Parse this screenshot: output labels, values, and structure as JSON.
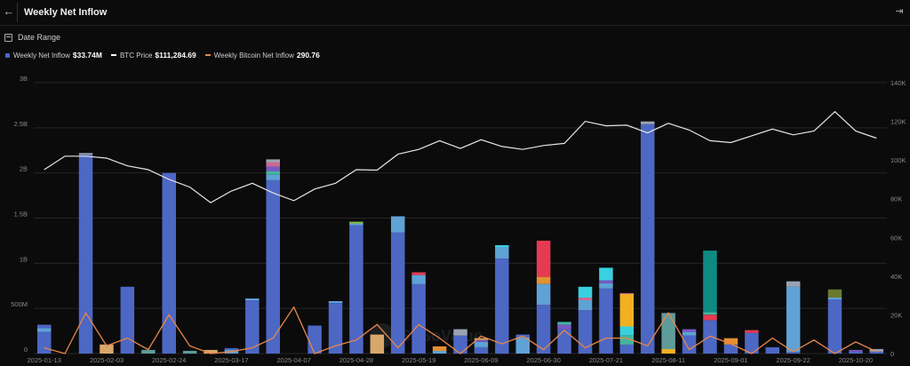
{
  "header": {
    "title": "Weekly Net Inflow",
    "back_icon": "arrow-left-icon",
    "panel_icon": "collapse-panel-icon"
  },
  "toolbar": {
    "date_range_label": "Date Range",
    "date_range_icon": "calendar-icon"
  },
  "legend": [
    {
      "label": "Weekly Net Inflow",
      "value": "$33.74M",
      "color": "#4d67c4",
      "kind": "square"
    },
    {
      "label": "BTC Price",
      "value": "$111,284.69",
      "color": "#ffffff",
      "kind": "line"
    },
    {
      "label": "Weekly Bitcoin Net Inflow",
      "value": "290.76",
      "color": "#e8874a",
      "kind": "line"
    }
  ],
  "colors": {
    "base": "#4d67c4",
    "btc": "#e6e6e6",
    "btc_inflow": "#e8874a",
    "grid": "#262626",
    "axis_text": "#8a8a8a"
  },
  "chart_data": {
    "type": "bar",
    "yaxis_left": {
      "ticks": [
        "3B",
        "2.5B",
        "2B",
        "1.5B",
        "1B",
        "500M",
        "0"
      ],
      "min": 0,
      "max": 3000000000
    },
    "yaxis_right": {
      "ticks": [
        "140K",
        "120K",
        "100K",
        "80K",
        "60K",
        "40K",
        "20K",
        "0"
      ],
      "min": 0,
      "max": 140000
    },
    "x_tick_labels": [
      "2025-01-13",
      "2025-02-03",
      "2025-02-24",
      "2025-03-17",
      "2025-04-07",
      "2025-04-28",
      "2025-05-19",
      "2025-06-09",
      "2025-06-30",
      "2025-07-21",
      "2025-08-11",
      "2025-09-01",
      "2025-09-22",
      "2025-10-20"
    ],
    "stack_colors": [
      "#4d67c4",
      "#5fa2d6",
      "#e39132",
      "#7a59c7",
      "#45b5a0",
      "#e53a50",
      "#f2b023",
      "#0e8a84",
      "#5e9b9a",
      "#6a7a2e",
      "#3ad0e0",
      "#c96a92",
      "#8ac44a",
      "#d8a86a",
      "#9aa4b2"
    ],
    "bars": [
      {
        "segments": [
          [
            0,
            240000000
          ],
          [
            1,
            40000000
          ],
          [
            0,
            40000000
          ]
        ]
      },
      {
        "segments": [
          [
            0,
            0
          ]
        ]
      },
      {
        "segments": [
          [
            0,
            2200000000
          ],
          [
            14,
            20000000
          ]
        ]
      },
      {
        "segments": [
          [
            13,
            100000000
          ]
        ]
      },
      {
        "segments": [
          [
            0,
            740000000
          ]
        ]
      },
      {
        "segments": [
          [
            8,
            40000000
          ]
        ]
      },
      {
        "segments": [
          [
            0,
            2000000000
          ]
        ]
      },
      {
        "segments": [
          [
            8,
            30000000
          ]
        ]
      },
      {
        "segments": [
          [
            13,
            40000000
          ]
        ]
      },
      {
        "segments": [
          [
            1,
            40000000
          ],
          [
            0,
            20000000
          ]
        ]
      },
      {
        "segments": [
          [
            0,
            590000000
          ],
          [
            1,
            20000000
          ]
        ]
      },
      {
        "segments": [
          [
            0,
            1920000000
          ],
          [
            1,
            60000000
          ],
          [
            4,
            40000000
          ],
          [
            3,
            50000000
          ],
          [
            11,
            50000000
          ],
          [
            14,
            30000000
          ]
        ]
      },
      {
        "segments": [
          [
            0,
            0
          ]
        ]
      },
      {
        "segments": [
          [
            0,
            310000000
          ]
        ]
      },
      {
        "segments": [
          [
            0,
            560000000
          ],
          [
            1,
            20000000
          ]
        ]
      },
      {
        "segments": [
          [
            0,
            1420000000
          ],
          [
            1,
            20000000
          ],
          [
            12,
            20000000
          ]
        ]
      },
      {
        "segments": [
          [
            13,
            210000000
          ]
        ]
      },
      {
        "segments": [
          [
            0,
            1340000000
          ],
          [
            1,
            180000000
          ]
        ]
      },
      {
        "segments": [
          [
            0,
            770000000
          ],
          [
            1,
            100000000
          ],
          [
            5,
            30000000
          ]
        ]
      },
      {
        "segments": [
          [
            1,
            30000000
          ],
          [
            2,
            50000000
          ]
        ]
      },
      {
        "segments": [
          [
            0,
            200000000
          ],
          [
            14,
            70000000
          ]
        ]
      },
      {
        "segments": [
          [
            0,
            70000000
          ],
          [
            1,
            60000000
          ],
          [
            3,
            20000000
          ],
          [
            13,
            20000000
          ]
        ]
      },
      {
        "segments": [
          [
            0,
            1050000000
          ],
          [
            1,
            130000000
          ],
          [
            10,
            20000000
          ]
        ]
      },
      {
        "segments": [
          [
            1,
            180000000
          ],
          [
            0,
            30000000
          ]
        ]
      },
      {
        "segments": [
          [
            0,
            540000000
          ],
          [
            1,
            230000000
          ],
          [
            2,
            80000000
          ],
          [
            5,
            400000000
          ]
        ]
      },
      {
        "segments": [
          [
            0,
            270000000
          ],
          [
            3,
            50000000
          ],
          [
            4,
            30000000
          ]
        ]
      },
      {
        "segments": [
          [
            0,
            480000000
          ],
          [
            1,
            110000000
          ],
          [
            11,
            30000000
          ],
          [
            10,
            120000000
          ]
        ]
      },
      {
        "segments": [
          [
            0,
            720000000
          ],
          [
            1,
            60000000
          ],
          [
            3,
            30000000
          ],
          [
            10,
            140000000
          ]
        ]
      },
      {
        "segments": [
          [
            0,
            100000000
          ],
          [
            4,
            100000000
          ],
          [
            10,
            100000000
          ],
          [
            6,
            360000000
          ],
          [
            11,
            10000000
          ]
        ]
      },
      {
        "segments": [
          [
            0,
            2540000000
          ],
          [
            14,
            30000000
          ]
        ]
      },
      {
        "segments": [
          [
            6,
            50000000
          ],
          [
            8,
            400000000
          ]
        ]
      },
      {
        "segments": [
          [
            0,
            200000000
          ],
          [
            1,
            40000000
          ],
          [
            3,
            30000000
          ]
        ]
      },
      {
        "segments": [
          [
            0,
            370000000
          ],
          [
            5,
            60000000
          ],
          [
            4,
            30000000
          ],
          [
            7,
            680000000
          ]
        ]
      },
      {
        "segments": [
          [
            0,
            100000000
          ],
          [
            2,
            70000000
          ]
        ]
      },
      {
        "segments": [
          [
            0,
            230000000
          ],
          [
            5,
            30000000
          ]
        ]
      },
      {
        "segments": [
          [
            0,
            70000000
          ]
        ]
      },
      {
        "segments": [
          [
            0,
            20000000
          ],
          [
            1,
            720000000
          ],
          [
            14,
            60000000
          ]
        ]
      },
      {
        "segments": [
          [
            0,
            0
          ]
        ]
      },
      {
        "segments": [
          [
            0,
            600000000
          ],
          [
            1,
            20000000
          ],
          [
            9,
            90000000
          ]
        ]
      },
      {
        "segments": [
          [
            0,
            20000000
          ],
          [
            3,
            20000000
          ]
        ]
      },
      {
        "segments": [
          [
            0,
            20000000
          ],
          [
            14,
            30000000
          ]
        ]
      }
    ],
    "btc_price": [
      95000,
      102000,
      102000,
      101000,
      97000,
      95000,
      90000,
      86000,
      78000,
      84000,
      88000,
      83000,
      79000,
      85000,
      88000,
      95000,
      94800,
      103000,
      105500,
      110000,
      106000,
      110500,
      107000,
      105500,
      107500,
      108600,
      120000,
      117700,
      118000,
      114000,
      119000,
      115500,
      110000,
      109000,
      112500,
      116000,
      113000,
      115000,
      125000,
      115000,
      111300
    ],
    "btc_inflow": [
      3000,
      0,
      21000,
      4000,
      8000,
      2000,
      20000,
      4000,
      0,
      1000,
      3000,
      8000,
      24000,
      0,
      4000,
      7000,
      15000,
      3000,
      15000,
      8000,
      0,
      9000,
      5000,
      9000,
      2000,
      12000,
      3000,
      8000,
      8000,
      4000,
      21000,
      2000,
      9000,
      5000,
      0,
      8000,
      1000,
      7000,
      0,
      6000,
      1000
    ]
  }
}
